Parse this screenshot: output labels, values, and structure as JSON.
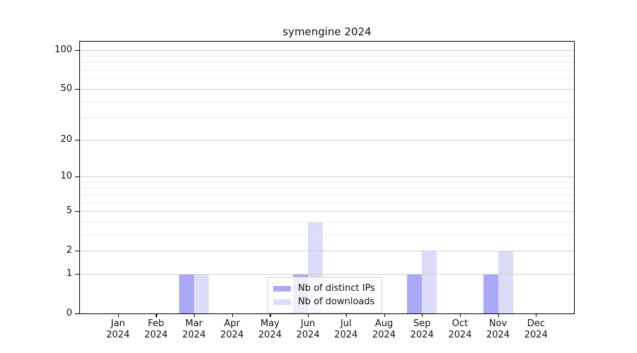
{
  "chart_data": {
    "type": "bar",
    "title": "symengine 2024",
    "categories": [
      "Jan",
      "Feb",
      "Mar",
      "Apr",
      "May",
      "Jun",
      "Jul",
      "Aug",
      "Sep",
      "Oct",
      "Nov",
      "Dec"
    ],
    "year_label": "2024",
    "series": [
      {
        "name": "Nb of distinct IPs",
        "color": "#a9a9f6",
        "values": [
          0,
          0,
          1,
          0,
          0,
          1,
          0,
          0,
          1,
          0,
          1,
          0
        ]
      },
      {
        "name": "Nb of downloads",
        "color": "#dcdcf9",
        "values": [
          0,
          0,
          1,
          0,
          0,
          4,
          0,
          0,
          2,
          0,
          2,
          0
        ]
      }
    ],
    "y_ticks": [
      0,
      1,
      2,
      5,
      10,
      20,
      50,
      100
    ],
    "y_minor_gridlines": [
      3,
      4,
      6,
      7,
      8,
      9,
      30,
      40,
      60,
      70,
      80,
      90
    ],
    "y_scale": "log10(1+x)",
    "ylim": [
      0,
      116
    ],
    "grid": true,
    "legend_position": "lower center",
    "colors": {
      "bar_distinct_ips": "#a9a9f6",
      "bar_downloads": "#dcdcf9",
      "major_grid": "#cfcfcf",
      "minor_grid": "#ebebeb",
      "axis": "#000000",
      "text": "#111111",
      "background": "#ffffff",
      "legend_border": "#cccccc"
    }
  }
}
